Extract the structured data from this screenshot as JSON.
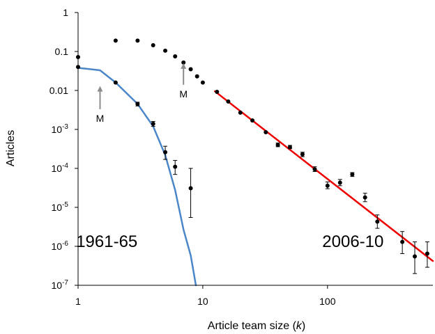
{
  "chart_data": {
    "type": "scatter",
    "xlabel_parts": [
      "Article team size (",
      "k",
      ")"
    ],
    "ylabel": "Articles",
    "x_scale": "log",
    "y_scale": "log",
    "xlim": [
      1,
      700
    ],
    "ylim": [
      1e-07,
      1
    ],
    "x_ticks": [
      {
        "value": 1,
        "label": "1"
      },
      {
        "value": 10,
        "label": "10"
      },
      {
        "value": 100,
        "label": "100"
      }
    ],
    "y_ticks": [
      {
        "value": 1,
        "label": "1"
      },
      {
        "value": 0.1,
        "label": "0.1"
      },
      {
        "value": 0.01,
        "label": "0.01"
      },
      {
        "value": 0.001,
        "base": "10",
        "exp": "-3"
      },
      {
        "value": 0.0001,
        "base": "10",
        "exp": "-4"
      },
      {
        "value": 1e-05,
        "base": "10",
        "exp": "-5"
      },
      {
        "value": 1e-06,
        "base": "10",
        "exp": "-6"
      },
      {
        "value": 1e-07,
        "base": "10",
        "exp": "-7"
      }
    ],
    "grid": false,
    "series": [
      {
        "name": "1961-65",
        "color": "#000000",
        "points": [
          {
            "x": 1,
            "y": 0.04
          },
          {
            "x": 2,
            "y": 0.016
          },
          {
            "x": 3,
            "y": 0.0045,
            "err": [
              0.004,
              0.005
            ]
          },
          {
            "x": 4,
            "y": 0.0014,
            "err": [
              0.0012,
              0.0016
            ]
          },
          {
            "x": 5,
            "y": 0.00026,
            "err": [
              0.00017,
              0.00037
            ]
          },
          {
            "x": 6,
            "y": 0.00011,
            "err": [
              7e-05,
              0.00016
            ]
          },
          {
            "x": 8,
            "y": 3.1e-05,
            "err": [
              5.5e-06,
              0.0001
            ]
          }
        ]
      },
      {
        "name": "2006-10",
        "color": "#000000",
        "points": [
          {
            "x": 1,
            "y": 0.072
          },
          {
            "x": 2,
            "y": 0.19
          },
          {
            "x": 3,
            "y": 0.19
          },
          {
            "x": 4,
            "y": 0.145
          },
          {
            "x": 5,
            "y": 0.105
          },
          {
            "x": 6,
            "y": 0.075
          },
          {
            "x": 7,
            "y": 0.052
          },
          {
            "x": 8,
            "y": 0.035
          },
          {
            "x": 9,
            "y": 0.023
          },
          {
            "x": 10,
            "y": 0.016
          },
          {
            "x": 13,
            "y": 0.0092
          },
          {
            "x": 16,
            "y": 0.0052
          },
          {
            "x": 20,
            "y": 0.0027
          },
          {
            "x": 25,
            "y": 0.0017
          },
          {
            "x": 32,
            "y": 0.00085
          },
          {
            "x": 40,
            "y": 0.0004,
            "err": [
              0.00036,
              0.00045
            ]
          },
          {
            "x": 50,
            "y": 0.00035,
            "err": [
              0.00032,
              0.00039
            ]
          },
          {
            "x": 63,
            "y": 0.00023,
            "err": [
              0.0002,
              0.00026
            ]
          },
          {
            "x": 79,
            "y": 9.5e-05,
            "err": [
              8.3e-05,
              0.00011
            ]
          },
          {
            "x": 100,
            "y": 3.6e-05,
            "err": [
              3e-05,
              4.5e-05
            ]
          },
          {
            "x": 126,
            "y": 4.3e-05,
            "err": [
              3.6e-05,
              5.2e-05
            ]
          },
          {
            "x": 158,
            "y": 7e-05,
            "err": [
              6.2e-05,
              7.8e-05
            ]
          },
          {
            "x": 200,
            "y": 1.8e-05,
            "err": [
              1.4e-05,
              2.3e-05
            ]
          },
          {
            "x": 251,
            "y": 4.3e-06,
            "err": [
              2.9e-06,
              6.4e-06
            ]
          },
          {
            "x": 398,
            "y": 1.3e-06,
            "err": [
              6.5e-07,
              2.4e-06
            ]
          },
          {
            "x": 501,
            "y": 5.5e-07,
            "err": [
              2e-07,
              1.3e-06
            ]
          },
          {
            "x": 631,
            "y": 6.5e-07,
            "err": [
              2.9e-07,
              1.3e-06
            ]
          }
        ]
      }
    ],
    "fits": [
      {
        "series": "1961-65",
        "color": "#4a86c8",
        "points": [
          [
            1,
            0.038
          ],
          [
            1.5,
            0.033
          ],
          [
            2,
            0.016
          ],
          [
            3,
            0.0045
          ],
          [
            4,
            0.0012
          ],
          [
            5,
            0.00022
          ],
          [
            6,
            2.8e-05
          ],
          [
            7,
            2.7e-06
          ],
          [
            8,
            5.8e-07
          ],
          [
            8.8,
            1e-07
          ]
        ]
      },
      {
        "series": "2006-10",
        "color": "#ee0000",
        "points": [
          [
            12.5,
            0.0095
          ],
          [
            700,
            4.2e-07
          ]
        ]
      }
    ],
    "annotations": [
      {
        "text": "M",
        "x": 1.5,
        "arrow_top": 0.013,
        "arrow_bottom": 0.0033
      },
      {
        "text": "M",
        "x": 7.0,
        "arrow_top": 0.05,
        "arrow_bottom": 0.014
      }
    ],
    "series_labels": [
      {
        "text": "1961-65",
        "x": 1.7,
        "y": 9.5e-07
      },
      {
        "text": "2006-10",
        "x": 160,
        "y": 9.5e-07
      }
    ]
  }
}
